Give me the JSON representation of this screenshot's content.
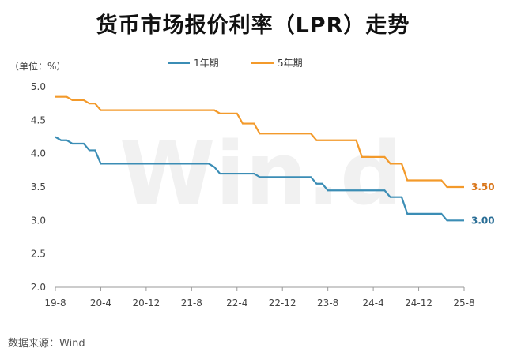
{
  "chart_data": {
    "type": "line",
    "title": "货币市场报价利率（LPR）走势",
    "unit_label": "（单位：%）",
    "ylim": [
      2.0,
      5.0
    ],
    "yticks": [
      "2.0",
      "2.5",
      "3.0",
      "3.5",
      "4.0",
      "4.5",
      "5.0"
    ],
    "xlim": [
      "2019-08",
      "2025-08"
    ],
    "xticks": [
      {
        "date": "2019-08",
        "label": "19-8"
      },
      {
        "date": "2020-04",
        "label": "20-4"
      },
      {
        "date": "2020-12",
        "label": "20-12"
      },
      {
        "date": "2021-08",
        "label": "21-8"
      },
      {
        "date": "2022-04",
        "label": "22-4"
      },
      {
        "date": "2022-12",
        "label": "22-12"
      },
      {
        "date": "2023-08",
        "label": "23-8"
      },
      {
        "date": "2024-04",
        "label": "24-4"
      },
      {
        "date": "2024-12",
        "label": "24-12"
      },
      {
        "date": "2025-08",
        "label": "25-8"
      }
    ],
    "grid": false,
    "legend_position": "top",
    "watermark": "Win.d",
    "series": [
      {
        "name": "1年期",
        "color": "#3b8db5",
        "end_label": "3.00",
        "end_label_color": "#2a6e96",
        "points": [
          [
            "2019-08",
            4.25
          ],
          [
            "2019-09",
            4.2
          ],
          [
            "2019-10",
            4.2
          ],
          [
            "2019-11",
            4.15
          ],
          [
            "2019-12",
            4.15
          ],
          [
            "2020-01",
            4.15
          ],
          [
            "2020-02",
            4.05
          ],
          [
            "2020-03",
            4.05
          ],
          [
            "2020-04",
            3.85
          ],
          [
            "2021-11",
            3.85
          ],
          [
            "2021-12",
            3.8
          ],
          [
            "2022-01",
            3.7
          ],
          [
            "2022-07",
            3.7
          ],
          [
            "2022-08",
            3.65
          ],
          [
            "2023-05",
            3.65
          ],
          [
            "2023-06",
            3.55
          ],
          [
            "2023-07",
            3.55
          ],
          [
            "2023-08",
            3.45
          ],
          [
            "2024-06",
            3.45
          ],
          [
            "2024-07",
            3.35
          ],
          [
            "2024-09",
            3.35
          ],
          [
            "2024-10",
            3.1
          ],
          [
            "2025-04",
            3.1
          ],
          [
            "2025-05",
            3.0
          ],
          [
            "2025-08",
            3.0
          ]
        ]
      },
      {
        "name": "5年期",
        "color": "#f39a2b",
        "end_label": "3.50",
        "end_label_color": "#d9761a",
        "points": [
          [
            "2019-08",
            4.85
          ],
          [
            "2019-09",
            4.85
          ],
          [
            "2019-10",
            4.85
          ],
          [
            "2019-11",
            4.8
          ],
          [
            "2020-01",
            4.8
          ],
          [
            "2020-02",
            4.75
          ],
          [
            "2020-03",
            4.75
          ],
          [
            "2020-04",
            4.65
          ],
          [
            "2021-12",
            4.65
          ],
          [
            "2022-01",
            4.6
          ],
          [
            "2022-04",
            4.6
          ],
          [
            "2022-05",
            4.45
          ],
          [
            "2022-07",
            4.45
          ],
          [
            "2022-08",
            4.3
          ],
          [
            "2023-05",
            4.3
          ],
          [
            "2023-06",
            4.2
          ],
          [
            "2024-01",
            4.2
          ],
          [
            "2024-02",
            3.95
          ],
          [
            "2024-06",
            3.95
          ],
          [
            "2024-07",
            3.85
          ],
          [
            "2024-09",
            3.85
          ],
          [
            "2024-10",
            3.6
          ],
          [
            "2025-04",
            3.6
          ],
          [
            "2025-05",
            3.5
          ],
          [
            "2025-08",
            3.5
          ]
        ]
      }
    ]
  },
  "source": "数据来源：Wind"
}
